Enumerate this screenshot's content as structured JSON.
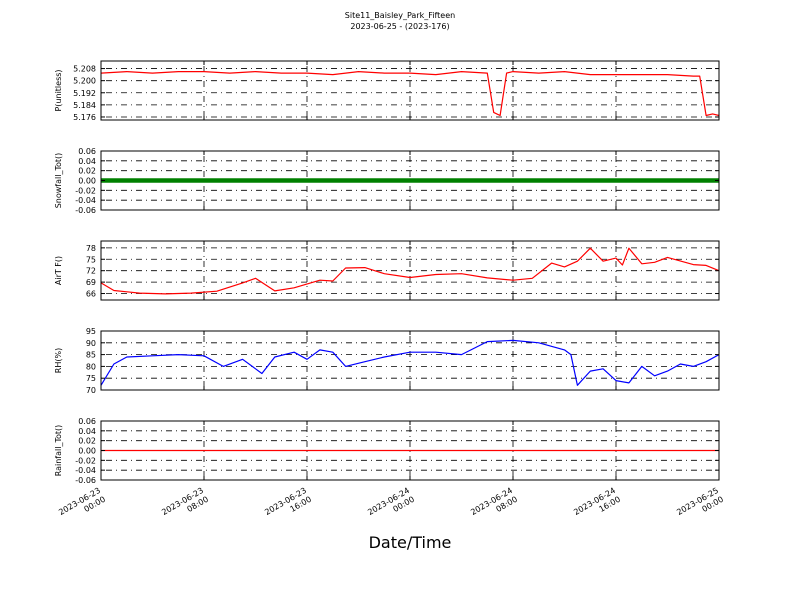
{
  "title": "Site11_Baisley_Park_Fifteen",
  "subtitle": "2023-06-25 - (2023-176)",
  "xlabel": "Date/Time",
  "x_ticks": [
    "2023-06-23 00:00",
    "2023-06-23 08:00",
    "2023-06-23 16:00",
    "2023-06-24 00:00",
    "2023-06-24 08:00",
    "2023-06-24 16:00",
    "2023-06-25 00:00"
  ],
  "chart_data": [
    {
      "type": "line",
      "ylabel": "P(unitless)",
      "color": "#ff0000",
      "ylim": [
        5.174,
        5.213
      ],
      "yticks": [
        "5.208",
        "5.200",
        "5.192",
        "5.184",
        "5.176"
      ],
      "ytick_values": [
        5.208,
        5.2,
        5.192,
        5.184,
        5.176
      ],
      "x": [
        "2023-06-23 00:00",
        "2023-06-23 02:00",
        "2023-06-23 04:00",
        "2023-06-23 06:00",
        "2023-06-23 08:00",
        "2023-06-23 10:00",
        "2023-06-23 12:00",
        "2023-06-23 14:00",
        "2023-06-23 16:00",
        "2023-06-23 18:00",
        "2023-06-23 20:00",
        "2023-06-23 22:00",
        "2023-06-24 00:00",
        "2023-06-24 02:00",
        "2023-06-24 04:00",
        "2023-06-24 06:00",
        "2023-06-24 06:30",
        "2023-06-24 07:00",
        "2023-06-24 07:30",
        "2023-06-24 08:00",
        "2023-06-24 10:00",
        "2023-06-24 12:00",
        "2023-06-24 14:00",
        "2023-06-24 16:00",
        "2023-06-24 18:00",
        "2023-06-24 20:00",
        "2023-06-24 22:00",
        "2023-06-24 22:30",
        "2023-06-24 23:00",
        "2023-06-24 23:30",
        "2023-06-25 00:00"
      ],
      "y": [
        5.205,
        5.206,
        5.205,
        5.206,
        5.206,
        5.205,
        5.206,
        5.205,
        5.205,
        5.204,
        5.206,
        5.205,
        5.205,
        5.204,
        5.206,
        5.205,
        5.179,
        5.177,
        5.205,
        5.206,
        5.205,
        5.206,
        5.204,
        5.204,
        5.204,
        5.204,
        5.203,
        5.203,
        5.177,
        5.178,
        5.177
      ]
    },
    {
      "type": "scatter",
      "ylabel": "Snowfall_Tot()",
      "color": "#008000",
      "ylim": [
        -0.06,
        0.06
      ],
      "yticks": [
        "0.06",
        "0.04",
        "0.02",
        "0.00",
        "-0.02",
        "-0.04",
        "-0.06"
      ],
      "ytick_values": [
        0.06,
        0.04,
        0.02,
        0,
        -0.02,
        -0.04,
        -0.06
      ],
      "x": [
        "2023-06-23 00:00",
        "2023-06-25 00:00"
      ],
      "y": [
        0.0,
        0.0
      ]
    },
    {
      "type": "line",
      "ylabel": "AirT F()",
      "color": "#ff0000",
      "ylim": [
        64.3,
        79.8
      ],
      "yticks": [
        "78",
        "75",
        "72",
        "69",
        "66"
      ],
      "ytick_values": [
        78,
        75,
        72,
        69,
        66
      ],
      "x": [
        "2023-06-23 00:00",
        "2023-06-23 01:00",
        "2023-06-23 03:00",
        "2023-06-23 05:00",
        "2023-06-23 07:00",
        "2023-06-23 09:00",
        "2023-06-23 11:00",
        "2023-06-23 12:00",
        "2023-06-23 13:30",
        "2023-06-23 15:00",
        "2023-06-23 17:00",
        "2023-06-23 18:00",
        "2023-06-23 19:00",
        "2023-06-23 20:30",
        "2023-06-23 22:00",
        "2023-06-24 00:00",
        "2023-06-24 02:00",
        "2023-06-24 04:00",
        "2023-06-24 06:00",
        "2023-06-24 08:00",
        "2023-06-24 09:30",
        "2023-06-24 11:00",
        "2023-06-24 12:00",
        "2023-06-24 13:00",
        "2023-06-24 14:00",
        "2023-06-24 15:00",
        "2023-06-24 16:00",
        "2023-06-24 16:30",
        "2023-06-24 17:00",
        "2023-06-24 18:00",
        "2023-06-24 19:00",
        "2023-06-24 20:00",
        "2023-06-24 22:00",
        "2023-06-24 23:00",
        "2023-06-25 00:00"
      ],
      "y": [
        68.8,
        66.8,
        66.1,
        65.9,
        66.1,
        66.6,
        68.8,
        70.0,
        66.7,
        67.5,
        69.5,
        69.3,
        72.7,
        72.8,
        71.2,
        70.2,
        71.0,
        71.2,
        70.1,
        69.5,
        70.0,
        74.0,
        73.0,
        74.5,
        77.9,
        74.5,
        75.3,
        73.5,
        77.9,
        73.8,
        74.2,
        75.5,
        73.6,
        73.4,
        72.0
      ]
    },
    {
      "type": "line",
      "ylabel": "RH(%)",
      "color": "#0000ff",
      "ylim": [
        70,
        95
      ],
      "yticks": [
        "95",
        "90",
        "85",
        "80",
        "75",
        "70"
      ],
      "ytick_values": [
        95,
        90,
        85,
        80,
        75,
        70
      ],
      "x": [
        "2023-06-23 00:00",
        "2023-06-23 01:00",
        "2023-06-23 02:00",
        "2023-06-23 04:00",
        "2023-06-23 06:00",
        "2023-06-23 08:00",
        "2023-06-23 09:30",
        "2023-06-23 11:00",
        "2023-06-23 12:30",
        "2023-06-23 13:30",
        "2023-06-23 15:00",
        "2023-06-23 16:00",
        "2023-06-23 17:00",
        "2023-06-23 18:00",
        "2023-06-23 19:00",
        "2023-06-23 20:30",
        "2023-06-23 22:00",
        "2023-06-24 00:00",
        "2023-06-24 02:00",
        "2023-06-24 04:00",
        "2023-06-24 06:00",
        "2023-06-24 08:00",
        "2023-06-24 10:00",
        "2023-06-24 12:00",
        "2023-06-24 12:30",
        "2023-06-24 13:00",
        "2023-06-24 14:00",
        "2023-06-24 15:00",
        "2023-06-24 16:00",
        "2023-06-24 17:00",
        "2023-06-24 18:00",
        "2023-06-24 19:00",
        "2023-06-24 20:00",
        "2023-06-24 21:00",
        "2023-06-24 22:00",
        "2023-06-24 23:00",
        "2023-06-25 00:00"
      ],
      "y": [
        72,
        81,
        84,
        84.5,
        85,
        84.5,
        80,
        83,
        77,
        84,
        86,
        83,
        87,
        86,
        80,
        82,
        84,
        86,
        86,
        85,
        90.5,
        91,
        90,
        87,
        85,
        72,
        78,
        79,
        74,
        73,
        80,
        76,
        78,
        81,
        80,
        82,
        85
      ]
    },
    {
      "type": "line",
      "ylabel": "Rainfall_Tot()",
      "color": "#ff0000",
      "ylim": [
        -0.06,
        0.06
      ],
      "yticks": [
        "0.06",
        "0.04",
        "0.02",
        "0.00",
        "-0.02",
        "-0.04",
        "-0.06"
      ],
      "ytick_values": [
        0.06,
        0.04,
        0.02,
        0,
        -0.02,
        -0.04,
        -0.06
      ],
      "x": [
        "2023-06-23 00:00",
        "2023-06-25 00:00"
      ],
      "y": [
        0.0,
        0.0
      ]
    }
  ]
}
